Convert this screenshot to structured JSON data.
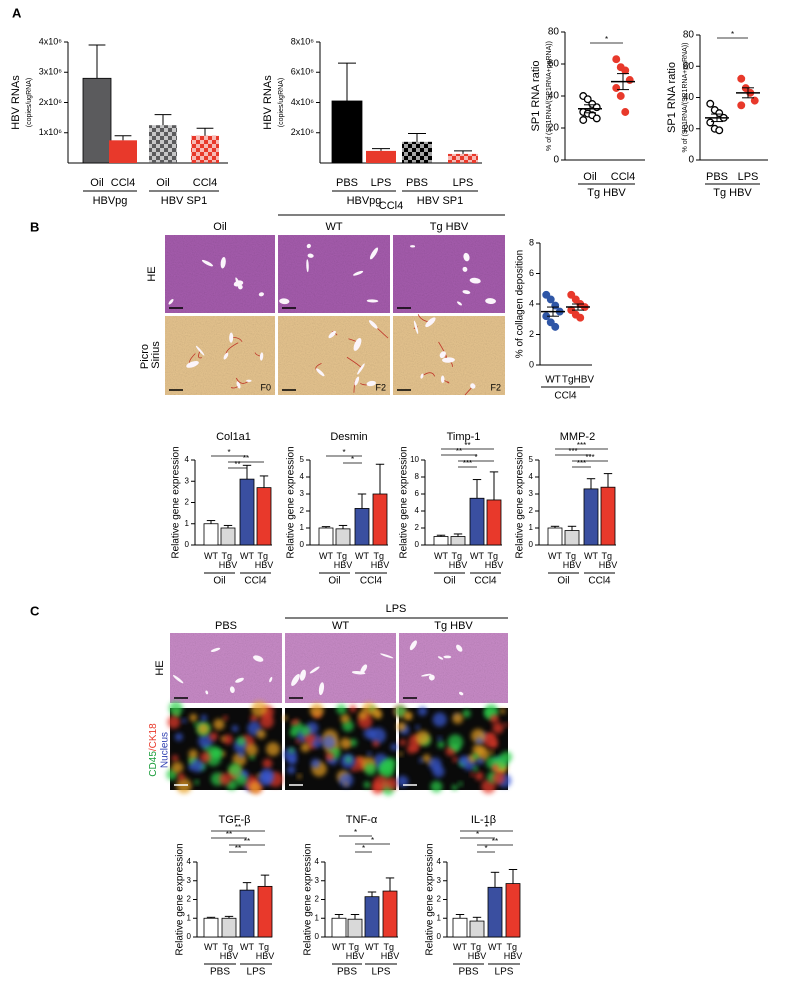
{
  "panels": [
    "A",
    "B",
    "C"
  ],
  "chart_data": [
    {
      "type": "bar",
      "ylabel": "HBV RNAs",
      "ylabel_sub": "(copies/ugRNA)",
      "categories": [
        "Oil",
        "CCl4",
        "Oil",
        "CCl4"
      ],
      "values": [
        2800000,
        750000,
        1250000,
        900000
      ],
      "errors": [
        1100000,
        150000,
        350000,
        250000
      ],
      "colors": [
        "#5b5b5d",
        "#e8392b",
        "#5b5b5d",
        "#e8392b"
      ],
      "patterns": [
        "solid",
        "solid",
        "checker",
        "checker"
      ],
      "groups": [
        {
          "label": "HBVpg",
          "span": [
            0,
            1
          ]
        },
        {
          "label": "HBV SP1",
          "span": [
            2,
            3
          ]
        }
      ],
      "ylim": [
        0,
        4000000
      ],
      "yticks": [
        {
          "value": 1000000,
          "label": "1x10⁶"
        },
        {
          "value": 2000000,
          "label": "2x10⁶"
        },
        {
          "value": 3000000,
          "label": "3x10⁶"
        },
        {
          "value": 4000000,
          "label": "4x10⁶"
        }
      ]
    },
    {
      "type": "bar",
      "ylabel": "HBV RNAs",
      "ylabel_sub": "(copies/ugRNA)",
      "categories": [
        "PBS",
        "LPS",
        "PBS",
        "LPS"
      ],
      "values": [
        4100000,
        800000,
        1400000,
        600000
      ],
      "errors": [
        2500000,
        150000,
        550000,
        200000
      ],
      "colors": [
        "#000000",
        "#e8392b",
        "#000000",
        "#e8392b"
      ],
      "patterns": [
        "solid",
        "solid",
        "checker",
        "checker"
      ],
      "groups": [
        {
          "label": "HBVpg",
          "span": [
            0,
            1
          ]
        },
        {
          "label": "HBV SP1",
          "span": [
            2,
            3
          ]
        }
      ],
      "ylim": [
        0,
        8000000
      ],
      "yticks": [
        {
          "value": 2000000,
          "label": "2x10⁶"
        },
        {
          "value": 4000000,
          "label": "4x10⁶"
        },
        {
          "value": 6000000,
          "label": "6x10⁶"
        },
        {
          "value": 8000000,
          "label": "8x10⁶"
        }
      ]
    },
    {
      "type": "dot",
      "ylabel": "SP1 RNA ratio",
      "ylabel_sub": "% of (SP1RNA/(SP1RNA+pgRNA))",
      "categories": [
        "Oil",
        "CCl4"
      ],
      "points": [
        [
          40,
          38,
          35,
          33,
          30,
          29,
          28,
          26,
          25
        ],
        [
          63,
          58,
          56,
          50,
          45,
          40,
          30
        ]
      ],
      "means": [
        32,
        49
      ],
      "sems": [
        2.5,
        5
      ],
      "colors": [
        "#000000",
        "#e8392b"
      ],
      "filled": [
        false,
        true
      ],
      "group": "Tg HBV",
      "ylim": [
        0,
        80
      ],
      "yticks": [
        0,
        20,
        40,
        60,
        80
      ],
      "significance": [
        {
          "from": 0,
          "to": 1,
          "label": "*"
        }
      ]
    },
    {
      "type": "dot",
      "ylabel": "SP1 RNA ratio",
      "ylabel_sub": "% of (SP1RNA/(SP1RNA+pgRNA))",
      "categories": [
        "PBS",
        "LPS"
      ],
      "points": [
        [
          36,
          32,
          30,
          27,
          24,
          20,
          19
        ],
        [
          52,
          46,
          43,
          38,
          35
        ]
      ],
      "means": [
        27,
        43
      ],
      "sems": [
        2.4,
        3.2
      ],
      "colors": [
        "#000000",
        "#e8392b"
      ],
      "filled": [
        false,
        true
      ],
      "group": "Tg HBV",
      "ylim": [
        0,
        80
      ],
      "yticks": [
        0,
        20,
        40,
        60,
        80
      ],
      "significance": [
        {
          "from": 0,
          "to": 1,
          "label": "*"
        }
      ]
    },
    {
      "type": "dot",
      "ylabel": "% of collagen deposition",
      "categories": [
        "WT",
        "TgHBV"
      ],
      "points": [
        [
          4.6,
          4.3,
          3.9,
          3.5,
          3.2,
          2.8,
          2.5
        ],
        [
          4.6,
          4.3,
          4.0,
          3.8,
          3.6,
          3.3,
          3.1
        ]
      ],
      "means": [
        3.5,
        3.8
      ],
      "sems": [
        0.3,
        0.2
      ],
      "colors": [
        "#2f56a6",
        "#e8392b"
      ],
      "filled": [
        true,
        true
      ],
      "group": "CCl4",
      "ylim": [
        0,
        8
      ],
      "yticks": [
        0,
        2,
        4,
        6,
        8
      ]
    },
    {
      "type": "bar",
      "title": "Col1a1",
      "ylabel": "Relative gene expression",
      "categories": [
        "WT",
        "Tg HBV",
        "WT",
        "Tg HBV"
      ],
      "values": [
        1.0,
        0.8,
        3.1,
        2.7
      ],
      "errors": [
        0.15,
        0.12,
        0.65,
        0.55
      ],
      "colors": [
        "#ffffff",
        "#d9d9d9",
        "#3a4fa0",
        "#e8392b"
      ],
      "groups": [
        {
          "label": "Oil",
          "span": [
            0,
            1
          ]
        },
        {
          "label": "CCl4",
          "span": [
            2,
            3
          ]
        }
      ],
      "ylim": [
        0,
        4
      ],
      "yticks": [
        0,
        1,
        2,
        3,
        4
      ],
      "significance": [
        {
          "from": 0,
          "to": 2,
          "label": "*"
        },
        {
          "from": 1,
          "to": 3,
          "label": "**"
        },
        {
          "from": 1,
          "to": 2,
          "label": "**"
        }
      ]
    },
    {
      "type": "bar",
      "title": "Desmin",
      "ylabel": "Relative gene expression",
      "categories": [
        "WT",
        "Tg HBV",
        "WT",
        "Tg HBV"
      ],
      "values": [
        1.0,
        0.95,
        2.15,
        3.0
      ],
      "errors": [
        0.08,
        0.2,
        0.85,
        1.75
      ],
      "colors": [
        "#ffffff",
        "#d9d9d9",
        "#3a4fa0",
        "#e8392b"
      ],
      "groups": [
        {
          "label": "Oil",
          "span": [
            0,
            1
          ]
        },
        {
          "label": "CCl4",
          "span": [
            2,
            3
          ]
        }
      ],
      "ylim": [
        0,
        5
      ],
      "yticks": [
        0,
        1,
        2,
        3,
        4,
        5
      ],
      "significance": [
        {
          "from": 0,
          "to": 2,
          "label": "*"
        },
        {
          "from": 1,
          "to": 2,
          "label": "*"
        }
      ]
    },
    {
      "type": "bar",
      "title": "Timp-1",
      "ylabel": "Relative gene expression",
      "categories": [
        "WT",
        "Tg HBV",
        "WT",
        "Tg HBV"
      ],
      "values": [
        1.0,
        1.0,
        5.5,
        5.3
      ],
      "errors": [
        0.15,
        0.3,
        2.2,
        3.3
      ],
      "colors": [
        "#ffffff",
        "#d9d9d9",
        "#3a4fa0",
        "#e8392b"
      ],
      "groups": [
        {
          "label": "Oil",
          "span": [
            0,
            1
          ]
        },
        {
          "label": "CCl4",
          "span": [
            2,
            3
          ]
        }
      ],
      "ylim": [
        0,
        10
      ],
      "yticks": [
        0,
        2,
        4,
        6,
        8,
        10
      ],
      "significance": [
        {
          "from": 0,
          "to": 3,
          "label": "**"
        },
        {
          "from": 0,
          "to": 2,
          "label": "**"
        },
        {
          "from": 1,
          "to": 3,
          "label": "*"
        },
        {
          "from": 1,
          "to": 2,
          "label": "***"
        }
      ]
    },
    {
      "type": "bar",
      "title": "MMP-2",
      "ylabel": "Relative gene expression",
      "categories": [
        "WT",
        "Tg HBV",
        "WT",
        "Tg HBV"
      ],
      "values": [
        1.0,
        0.85,
        3.3,
        3.4
      ],
      "errors": [
        0.1,
        0.25,
        0.6,
        0.8
      ],
      "colors": [
        "#ffffff",
        "#d9d9d9",
        "#3a4fa0",
        "#e8392b"
      ],
      "groups": [
        {
          "label": "Oil",
          "span": [
            0,
            1
          ]
        },
        {
          "label": "CCl4",
          "span": [
            2,
            3
          ]
        }
      ],
      "ylim": [
        0,
        5
      ],
      "yticks": [
        0,
        1,
        2,
        3,
        4,
        5
      ],
      "significance": [
        {
          "from": 0,
          "to": 3,
          "label": "***"
        },
        {
          "from": 0,
          "to": 2,
          "label": "***"
        },
        {
          "from": 1,
          "to": 3,
          "label": "***"
        },
        {
          "from": 1,
          "to": 2,
          "label": "***"
        }
      ]
    },
    {
      "type": "bar",
      "title": "TGF-β",
      "ylabel": "Relative gene expression",
      "categories": [
        "WT",
        "Tg HBV",
        "WT",
        "Tg HBV"
      ],
      "values": [
        1.0,
        1.0,
        2.5,
        2.7
      ],
      "errors": [
        0.05,
        0.1,
        0.4,
        0.6
      ],
      "colors": [
        "#ffffff",
        "#d9d9d9",
        "#3a4fa0",
        "#e8392b"
      ],
      "groups": [
        {
          "label": "PBS",
          "span": [
            0,
            1
          ]
        },
        {
          "label": "LPS",
          "span": [
            2,
            3
          ]
        }
      ],
      "ylim": [
        0,
        4
      ],
      "yticks": [
        0,
        1,
        2,
        3,
        4
      ],
      "significance": [
        {
          "from": 0,
          "to": 3,
          "label": "**"
        },
        {
          "from": 0,
          "to": 2,
          "label": "**"
        },
        {
          "from": 1,
          "to": 3,
          "label": "**"
        },
        {
          "from": 1,
          "to": 2,
          "label": "**"
        }
      ]
    },
    {
      "type": "bar",
      "title": "TNF-α",
      "ylabel": "Relative gene expression",
      "categories": [
        "WT",
        "Tg HBV",
        "WT",
        "Tg HBV"
      ],
      "values": [
        1.0,
        0.95,
        2.15,
        2.45
      ],
      "errors": [
        0.2,
        0.25,
        0.25,
        0.7
      ],
      "colors": [
        "#ffffff",
        "#d9d9d9",
        "#3a4fa0",
        "#e8392b"
      ],
      "groups": [
        {
          "label": "PBS",
          "span": [
            0,
            1
          ]
        },
        {
          "label": "LPS",
          "span": [
            2,
            3
          ]
        }
      ],
      "ylim": [
        0,
        4
      ],
      "yticks": [
        0,
        1,
        2,
        3,
        4
      ],
      "significance": [
        {
          "from": 0,
          "to": 2,
          "label": "*"
        },
        {
          "from": 1,
          "to": 3,
          "label": "*"
        },
        {
          "from": 1,
          "to": 2,
          "label": "*"
        }
      ]
    },
    {
      "type": "bar",
      "title": "IL-1β",
      "ylabel": "Relative gene expression",
      "categories": [
        "WT",
        "Tg HBV",
        "WT",
        "Tg HBV"
      ],
      "values": [
        1.0,
        0.85,
        2.65,
        2.85
      ],
      "errors": [
        0.2,
        0.2,
        0.8,
        0.75
      ],
      "colors": [
        "#ffffff",
        "#d9d9d9",
        "#3a4fa0",
        "#e8392b"
      ],
      "groups": [
        {
          "label": "PBS",
          "span": [
            0,
            1
          ]
        },
        {
          "label": "LPS",
          "span": [
            2,
            3
          ]
        }
      ],
      "ylim": [
        0,
        4
      ],
      "yticks": [
        0,
        1,
        2,
        3,
        4
      ],
      "significance": [
        {
          "from": 0,
          "to": 3,
          "label": "*"
        },
        {
          "from": 0,
          "to": 2,
          "label": "*"
        },
        {
          "from": 1,
          "to": 3,
          "label": "**"
        },
        {
          "from": 1,
          "to": 2,
          "label": "*"
        }
      ]
    }
  ],
  "image_panels": [
    {
      "group": "CCl4",
      "columns": [
        "Oil",
        "WT",
        "Tg HBV"
      ],
      "rows": [
        "HE",
        "Picro Sirius"
      ],
      "scores": [
        "F0",
        "F2",
        "F2"
      ]
    },
    {
      "group": "LPS",
      "columns": [
        "PBS",
        "WT",
        "Tg HBV"
      ],
      "rows": [
        "HE"
      ],
      "stain": [
        "CD45",
        "/CK18",
        "Nucleus"
      ]
    }
  ]
}
